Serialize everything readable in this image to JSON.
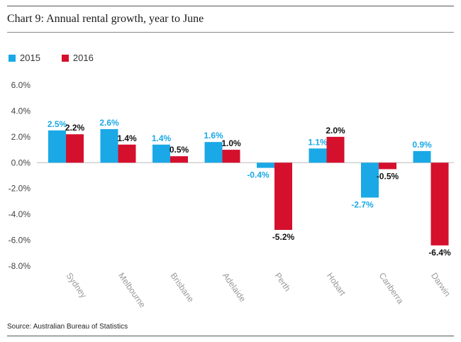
{
  "title": "Chart 9: Annual rental growth, year to June",
  "source": "Source: Australian Bureau of Statistics",
  "colors": {
    "s2015": "#1aa9e6",
    "s2016": "#d5102d",
    "label2016": "#111111"
  },
  "chart_data": {
    "type": "bar",
    "title": "Chart 9: Annual rental growth, year to June",
    "categories": [
      "Sydney",
      "Melbourne",
      "Brisbane",
      "Adelaide",
      "Perth",
      "Hobart",
      "Canberra",
      "Darwin"
    ],
    "series": [
      {
        "name": "2015",
        "values": [
          2.5,
          2.6,
          1.4,
          1.6,
          -0.4,
          1.1,
          -2.7,
          0.9
        ]
      },
      {
        "name": "2016",
        "values": [
          2.2,
          1.4,
          0.5,
          1.0,
          -5.2,
          2.0,
          -0.5,
          -6.4
        ]
      }
    ],
    "data_labels": [
      [
        "2.5%",
        "2.6%",
        "1.4%",
        "1.6%",
        "-0.4%",
        "1.1%",
        "-2.7%",
        "0.9%"
      ],
      [
        "2.2%",
        "1.4%",
        "0.5%",
        "1.0%",
        "-5.2%",
        "2.0%",
        "-0.5%",
        "-6.4%"
      ]
    ],
    "yticks": [
      "6.0%",
      "4.0%",
      "2.0%",
      "0.0%",
      "-2.0%",
      "-4.0%",
      "-6.0%",
      "-8.0%"
    ],
    "ytick_values": [
      6,
      4,
      2,
      0,
      -2,
      -4,
      -6,
      -8
    ],
    "ylim": [
      -8,
      6
    ],
    "grid": false,
    "legend": "top-left"
  }
}
